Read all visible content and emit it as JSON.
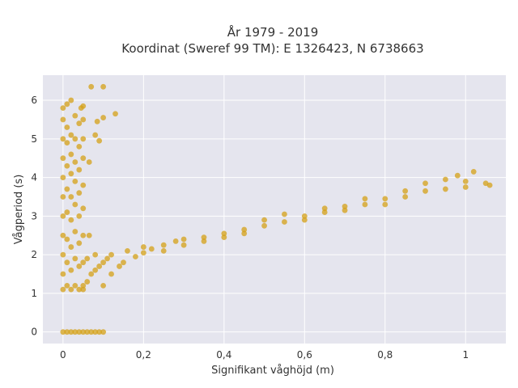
{
  "chart_data": {
    "type": "scatter",
    "title": "År 1979 - 2019",
    "subtitle": "Koordinat (Sweref 99 TM): E 1326423, N 6738663",
    "xlabel": "Signifikant våghöjd (m)",
    "ylabel": "Vågperiod (s)",
    "xlim": [
      -0.05,
      1.1
    ],
    "ylim": [
      -0.3,
      6.65
    ],
    "x_ticks": [
      0,
      0.2,
      0.4,
      0.6,
      0.8,
      1
    ],
    "x_tick_labels": [
      "0",
      "0,2",
      "0,4",
      "0,6",
      "0,8",
      "1"
    ],
    "y_ticks": [
      0,
      1,
      2,
      3,
      4,
      5,
      6
    ],
    "y_tick_labels": [
      "0",
      "1",
      "2",
      "3",
      "4",
      "5",
      "6"
    ],
    "grid": true,
    "colors": {
      "marker": "#D4A017",
      "plot_bg": "#E5E5EE",
      "grid": "#ffffff"
    },
    "series": [
      {
        "description_points": "approximate representative sample",
        "points": [
          [
            0.0,
            0.0
          ],
          [
            0.01,
            0.0
          ],
          [
            0.02,
            0.0
          ],
          [
            0.03,
            0.0
          ],
          [
            0.04,
            0.0
          ],
          [
            0.05,
            0.0
          ],
          [
            0.06,
            0.0
          ],
          [
            0.07,
            0.0
          ],
          [
            0.08,
            0.0
          ],
          [
            0.09,
            0.0
          ],
          [
            0.1,
            0.0
          ],
          [
            0.0,
            1.1
          ],
          [
            0.0,
            1.5
          ],
          [
            0.0,
            2.0
          ],
          [
            0.0,
            2.5
          ],
          [
            0.0,
            3.0
          ],
          [
            0.0,
            3.5
          ],
          [
            0.0,
            4.0
          ],
          [
            0.0,
            4.5
          ],
          [
            0.0,
            5.0
          ],
          [
            0.0,
            5.5
          ],
          [
            0.0,
            5.8
          ],
          [
            0.01,
            1.2
          ],
          [
            0.01,
            1.8
          ],
          [
            0.01,
            2.4
          ],
          [
            0.01,
            3.1
          ],
          [
            0.01,
            3.7
          ],
          [
            0.01,
            4.3
          ],
          [
            0.01,
            4.9
          ],
          [
            0.01,
            5.3
          ],
          [
            0.01,
            5.9
          ],
          [
            0.02,
            1.1
          ],
          [
            0.02,
            1.6
          ],
          [
            0.02,
            2.2
          ],
          [
            0.02,
            2.9
          ],
          [
            0.02,
            3.5
          ],
          [
            0.02,
            4.1
          ],
          [
            0.02,
            4.6
          ],
          [
            0.02,
            5.1
          ],
          [
            0.02,
            6.0
          ],
          [
            0.03,
            1.2
          ],
          [
            0.03,
            1.9
          ],
          [
            0.03,
            2.6
          ],
          [
            0.03,
            3.3
          ],
          [
            0.03,
            3.9
          ],
          [
            0.03,
            4.4
          ],
          [
            0.03,
            5.0
          ],
          [
            0.03,
            5.6
          ],
          [
            0.04,
            1.1
          ],
          [
            0.04,
            1.7
          ],
          [
            0.04,
            2.3
          ],
          [
            0.04,
            3.0
          ],
          [
            0.04,
            3.6
          ],
          [
            0.04,
            4.2
          ],
          [
            0.04,
            4.8
          ],
          [
            0.04,
            5.4
          ],
          [
            0.05,
            1.2
          ],
          [
            0.05,
            1.8
          ],
          [
            0.05,
            2.5
          ],
          [
            0.05,
            3.2
          ],
          [
            0.05,
            3.8
          ],
          [
            0.05,
            4.5
          ],
          [
            0.05,
            5.0
          ],
          [
            0.05,
            5.5
          ],
          [
            0.045,
            5.8
          ],
          [
            0.05,
            5.85
          ],
          [
            0.065,
            4.4
          ],
          [
            0.07,
            6.35
          ],
          [
            0.09,
            4.95
          ],
          [
            0.08,
            5.1
          ],
          [
            0.085,
            5.45
          ],
          [
            0.1,
            6.35
          ],
          [
            0.1,
            5.55
          ],
          [
            0.13,
            5.65
          ],
          [
            0.065,
            2.5
          ],
          [
            0.05,
            1.1
          ],
          [
            0.06,
            1.3
          ],
          [
            0.07,
            1.5
          ],
          [
            0.08,
            1.6
          ],
          [
            0.09,
            1.7
          ],
          [
            0.1,
            1.8
          ],
          [
            0.11,
            1.9
          ],
          [
            0.12,
            2.0
          ],
          [
            0.06,
            1.9
          ],
          [
            0.08,
            2.0
          ],
          [
            0.1,
            1.2
          ],
          [
            0.12,
            1.5
          ],
          [
            0.14,
            1.7
          ],
          [
            0.16,
            2.1
          ],
          [
            0.15,
            1.8
          ],
          [
            0.18,
            1.95
          ],
          [
            0.2,
            2.05
          ],
          [
            0.22,
            2.15
          ],
          [
            0.25,
            2.25
          ],
          [
            0.28,
            2.35
          ],
          [
            0.3,
            2.4
          ],
          [
            0.2,
            2.2
          ],
          [
            0.25,
            2.1
          ],
          [
            0.3,
            2.25
          ],
          [
            0.35,
            2.45
          ],
          [
            0.4,
            2.55
          ],
          [
            0.45,
            2.65
          ],
          [
            0.5,
            2.75
          ],
          [
            0.35,
            2.35
          ],
          [
            0.4,
            2.45
          ],
          [
            0.45,
            2.55
          ],
          [
            0.5,
            2.9
          ],
          [
            0.55,
            2.85
          ],
          [
            0.6,
            3.0
          ],
          [
            0.65,
            3.1
          ],
          [
            0.55,
            3.05
          ],
          [
            0.6,
            2.9
          ],
          [
            0.65,
            3.2
          ],
          [
            0.7,
            3.25
          ],
          [
            0.75,
            3.3
          ],
          [
            0.8,
            3.45
          ],
          [
            0.85,
            3.5
          ],
          [
            0.7,
            3.15
          ],
          [
            0.75,
            3.45
          ],
          [
            0.8,
            3.3
          ],
          [
            0.85,
            3.65
          ],
          [
            0.9,
            3.65
          ],
          [
            0.95,
            3.7
          ],
          [
            1.0,
            3.75
          ],
          [
            0.9,
            3.85
          ],
          [
            0.95,
            3.95
          ],
          [
            0.98,
            4.05
          ],
          [
            1.0,
            3.9
          ],
          [
            1.02,
            4.15
          ],
          [
            1.05,
            3.85
          ],
          [
            1.06,
            3.8
          ]
        ]
      }
    ]
  }
}
